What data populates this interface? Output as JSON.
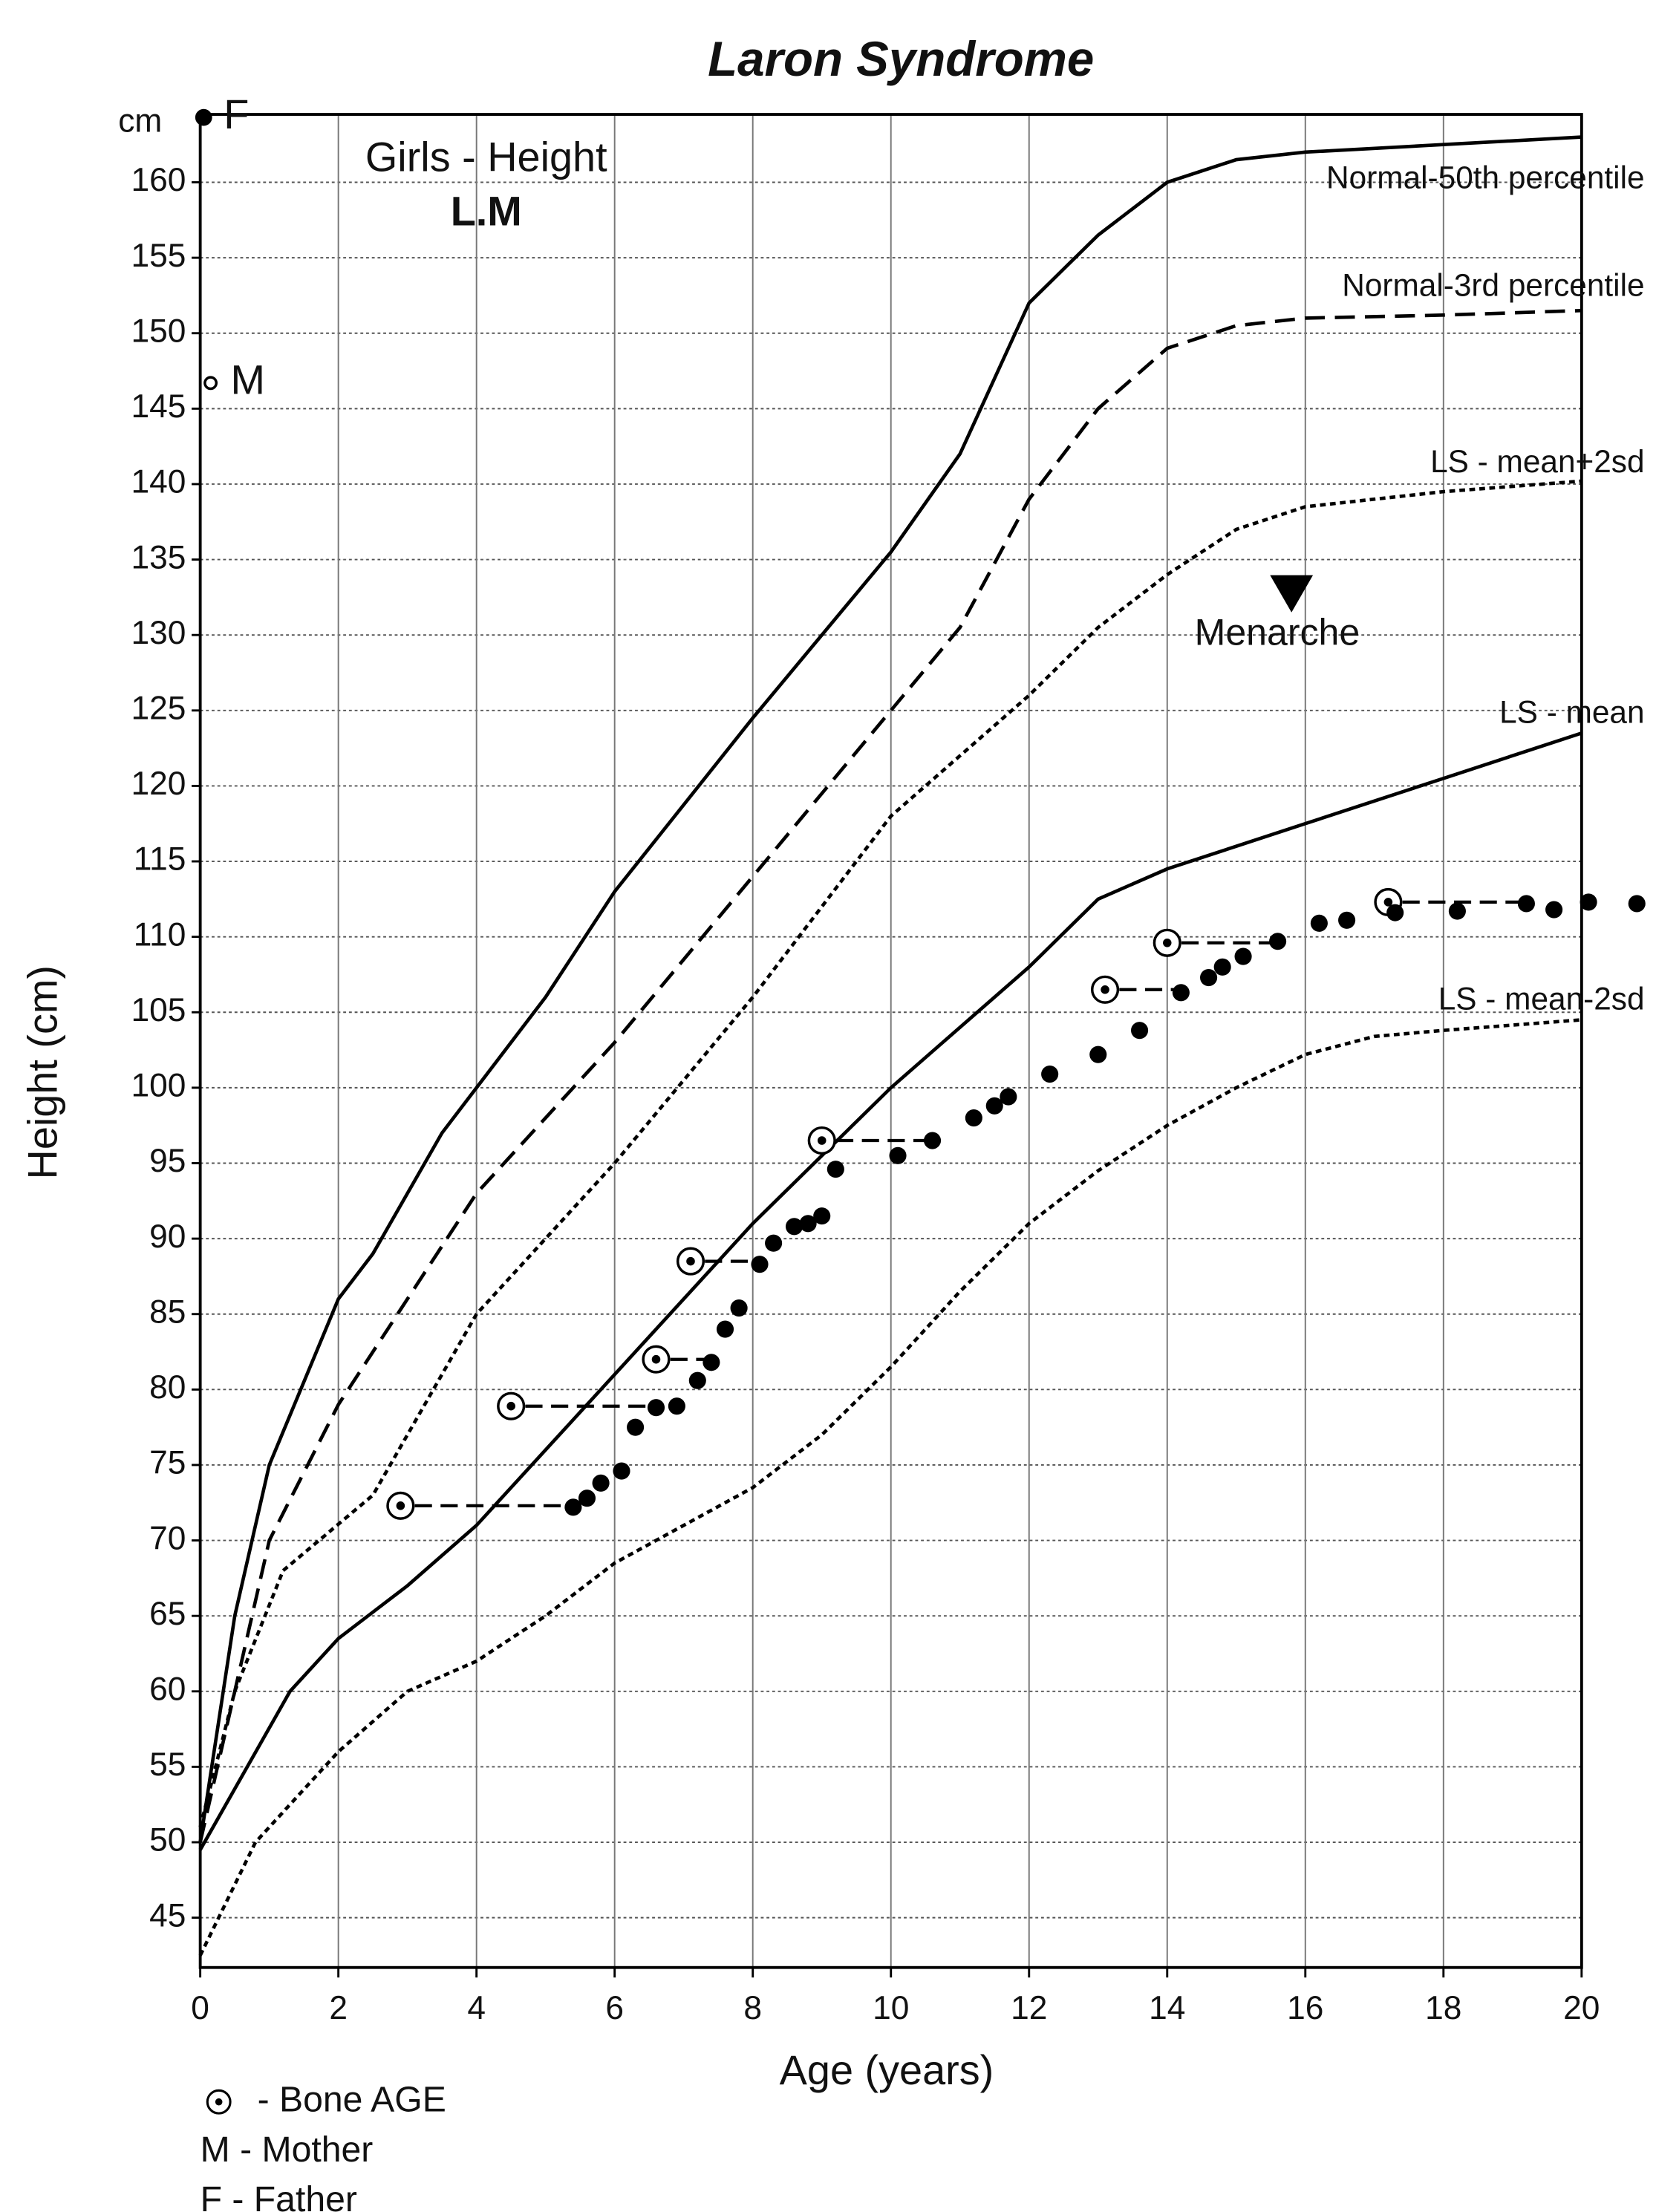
{
  "chart_data": {
    "type": "line",
    "title": "Laron Syndrome",
    "subtitle": "Girls - Height",
    "patient": "L.M",
    "xlabel": "Age (years)",
    "ylabel": "Height (cm)",
    "y_unit": "cm",
    "xlim": [
      0,
      20
    ],
    "ylim": [
      41.7,
      164.5
    ],
    "xticks": [
      0,
      2,
      4,
      6,
      8,
      10,
      12,
      14,
      16,
      18,
      20
    ],
    "yticks": [
      45,
      50,
      55,
      60,
      65,
      70,
      75,
      80,
      85,
      90,
      95,
      100,
      105,
      110,
      115,
      120,
      125,
      130,
      135,
      140,
      145,
      150,
      155,
      160
    ],
    "grid": true,
    "series": [
      {
        "name": "Normal-50th percentile",
        "color": "#000000",
        "dash": "solid",
        "x": [
          0,
          0.5,
          1,
          2,
          2.5,
          3.5,
          5,
          6,
          8,
          10,
          11,
          12,
          13,
          14,
          15,
          16,
          18,
          20
        ],
        "values": [
          50,
          65,
          75,
          86,
          89,
          97,
          106,
          113,
          124.5,
          135.5,
          142,
          152,
          156.5,
          160,
          161.5,
          162,
          162.5,
          163
        ]
      },
      {
        "name": "Normal-3rd percentile",
        "color": "#000000",
        "dash": "dashed",
        "x": [
          0,
          0.5,
          1,
          2,
          3,
          4,
          6,
          8,
          10,
          11,
          12,
          13,
          14,
          15,
          16,
          18,
          20
        ],
        "values": [
          50,
          60,
          70,
          79,
          86,
          93,
          103,
          114,
          125,
          130.5,
          139,
          145,
          149,
          150.5,
          151,
          151.2,
          151.5
        ]
      },
      {
        "name": "LS - mean+2sd",
        "color": "#000000",
        "dash": "dotted",
        "x": [
          0,
          0.5,
          1.2,
          2.5,
          4,
          6,
          8,
          10,
          11,
          12,
          13,
          14,
          15,
          16,
          18,
          20
        ],
        "values": [
          51,
          60,
          68,
          73,
          85,
          95,
          106,
          118,
          122,
          126,
          130.5,
          134,
          137,
          138.5,
          139.5,
          140.2
        ]
      },
      {
        "name": "LS - mean",
        "color": "#000000",
        "dash": "solid",
        "x": [
          0,
          1.3,
          2,
          3,
          4,
          6,
          8,
          10,
          12,
          13,
          14,
          16,
          18,
          20
        ],
        "values": [
          49.5,
          60,
          63.5,
          67,
          71,
          81,
          91,
          100,
          108,
          112.5,
          114.5,
          117.5,
          120.5,
          123.5
        ]
      },
      {
        "name": "LS - mean-2sd",
        "color": "#000000",
        "dash": "dotted",
        "x": [
          0,
          0.8,
          2,
          3,
          4,
          5,
          6,
          8,
          9,
          10,
          11,
          12,
          13,
          14,
          15,
          16,
          17,
          18,
          20
        ],
        "values": [
          42.5,
          50,
          56,
          60,
          62,
          65,
          68.5,
          73.5,
          77,
          81.5,
          86.5,
          91,
          94.5,
          97.5,
          100,
          102.2,
          103.4,
          103.8,
          104.5
        ]
      }
    ],
    "patient_heights": {
      "color": "#000000",
      "x": [
        5.4,
        5.6,
        5.8,
        6.1,
        6.3,
        6.6,
        6.9,
        7.2,
        7.4,
        7.6,
        7.8,
        8.1,
        8.3,
        8.6,
        8.8,
        9.0,
        9.2,
        10.1,
        10.6,
        11.2,
        11.5,
        11.7,
        12.3,
        13,
        13.6,
        14.2,
        14.6,
        14.8,
        15.1,
        15.6,
        16.2,
        16.6,
        17.3,
        18.2,
        19.2,
        19.6,
        20.1,
        20.8
      ],
      "values": [
        72.2,
        72.8,
        73.8,
        74.6,
        77.5,
        78.8,
        78.9,
        80.6,
        81.8,
        84,
        85.4,
        88.3,
        89.7,
        90.8,
        91,
        91.5,
        94.6,
        95.5,
        96.5,
        98,
        98.8,
        99.4,
        100.9,
        102.2,
        103.8,
        106.3,
        107.3,
        108,
        108.7,
        109.7,
        110.9,
        111.1,
        111.6,
        111.7,
        112.2,
        111.8,
        112.3,
        112.2
      ]
    },
    "bone_age": {
      "name": "- Bone AGE",
      "color": "#000000",
      "x": [
        2.9,
        4.5,
        6.6,
        7.1,
        9.0,
        13.1,
        14.0,
        17.2
      ],
      "values": [
        72.3,
        78.9,
        82,
        88.5,
        96.5,
        106.5,
        109.6,
        112.3
      ],
      "chronological_x": [
        5.4,
        6.6,
        7.4,
        8.1,
        10.6,
        14.2,
        15.6,
        19.2
      ]
    },
    "parents": [
      {
        "label": "F",
        "legend": "F -  Father",
        "x": 0.05,
        "value": 164.3,
        "filled": true
      },
      {
        "label": "M",
        "legend": "M - Mother",
        "x": 0.15,
        "value": 146.7,
        "filled": false
      }
    ],
    "annotation": {
      "text": "Menarche",
      "x": 15.8,
      "value": 131.5
    }
  }
}
